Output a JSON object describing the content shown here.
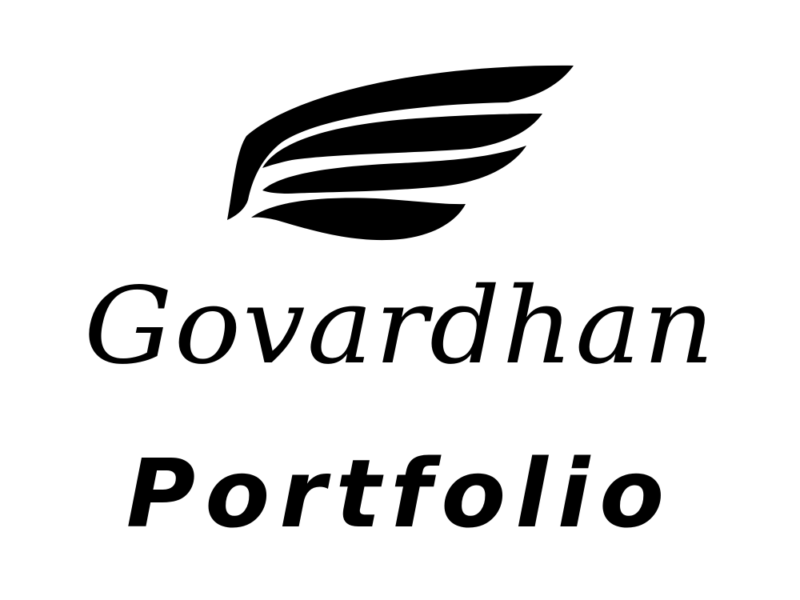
{
  "logo": {
    "icon": "wing-icon",
    "color": "#000000"
  },
  "brand": {
    "name": "Govardhan",
    "subtitle": "Portfolio"
  },
  "colors": {
    "background": "#ffffff",
    "foreground": "#000000"
  }
}
